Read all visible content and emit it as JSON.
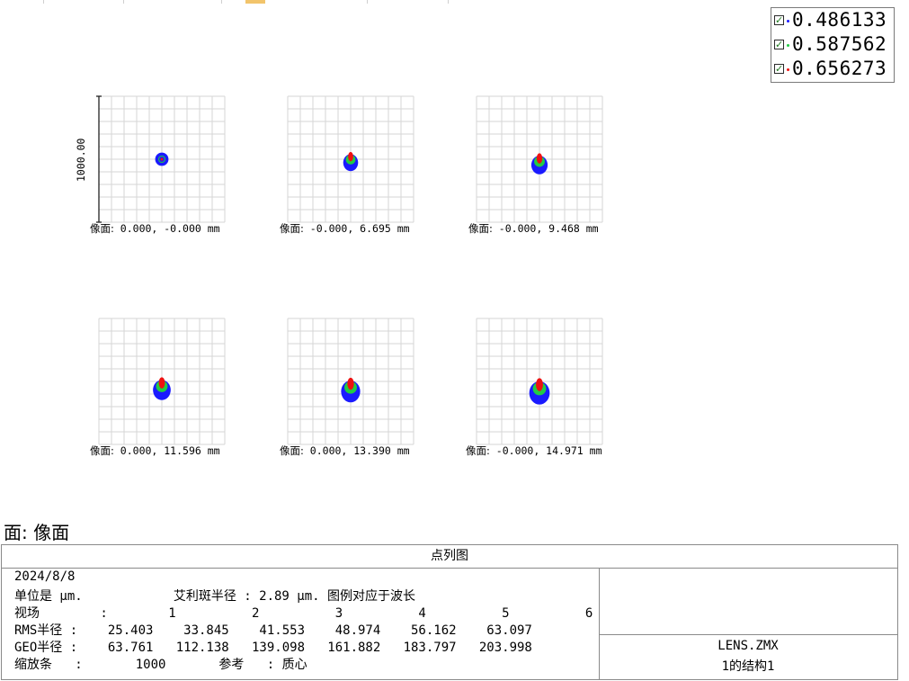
{
  "legend": {
    "items": [
      {
        "wavelength": "0.486133",
        "color": "#1a1aff",
        "checked": true
      },
      {
        "wavelength": "0.587562",
        "color": "#22cc44",
        "checked": true
      },
      {
        "wavelength": "0.656273",
        "color": "#ee1111",
        "checked": true
      }
    ]
  },
  "scale_label": "1000.00",
  "spots": [
    {
      "caption_prefix": "像面:",
      "coords": "0.000, -0.000 mm",
      "rms": 25.403
    },
    {
      "caption_prefix": "像面:",
      "coords": "-0.000, 6.695 mm",
      "rms": 33.845
    },
    {
      "caption_prefix": "像面:",
      "coords": "-0.000, 9.468 mm",
      "rms": 41.553
    },
    {
      "caption_prefix": "像面:",
      "coords": "0.000, 11.596 mm",
      "rms": 48.974
    },
    {
      "caption_prefix": "像面:",
      "coords": "0.000, 13.390 mm",
      "rms": 56.162
    },
    {
      "caption_prefix": "像面:",
      "coords": "-0.000, 14.971 mm",
      "rms": 63.097
    }
  ],
  "surface_title": "面: 像面",
  "info": {
    "title": "点列图",
    "date": "2024/8/8",
    "units_line": "单位是 μm.            艾利斑半径 : 2.89 μm. 图例对应于波长",
    "field_line": "视场        :        1          2          3          4          5          6",
    "rms_line": "RMS半径 :    25.403    33.845    41.553    48.974    56.162    63.097",
    "geo_line": "GEO半径 :    63.761   112.138   139.098   161.882   183.797   203.998",
    "scale_line": "缩放条   :       1000       参考   : 质心",
    "file_name": "LENS.ZMX",
    "config": "1的结构1"
  },
  "colors": {
    "blue": "#1a1aff",
    "green": "#22cc44",
    "red": "#ee1111",
    "grid": "#d6d6d6"
  }
}
